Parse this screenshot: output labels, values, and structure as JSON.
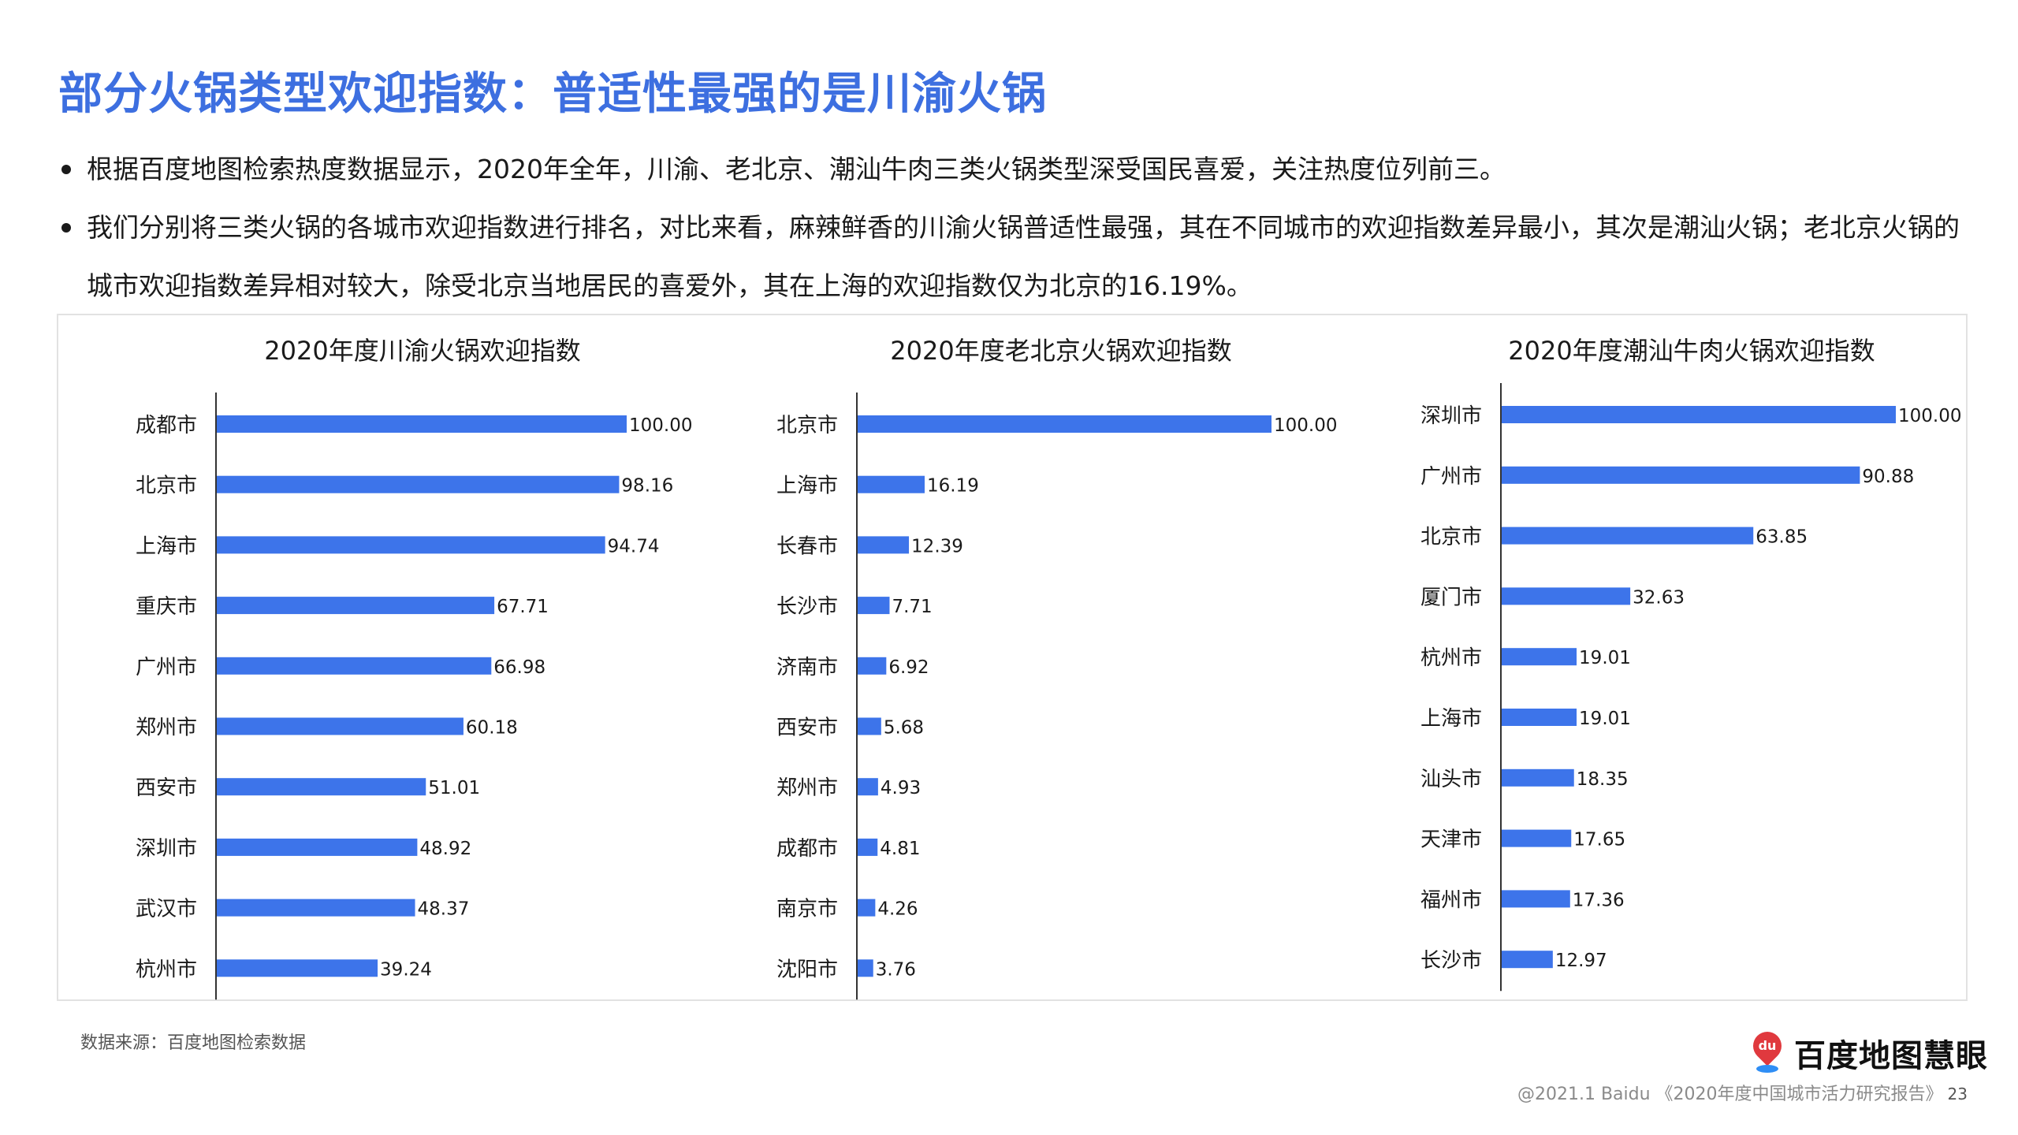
{
  "page": {
    "title": "部分火锅类型欢迎指数：普适性最强的是川渝火锅",
    "bullets": [
      "根据百度地图检索热度数据显示，2020年全年，川渝、老北京、潮汕牛肉三类火锅类型深受国民喜爱，关注热度位列前三。",
      "我们分别将三类火锅的各城市欢迎指数进行排名，对比来看，麻辣鲜香的川渝火锅普适性最强，其在不同城市的欢迎指数差异最小，其次是潮汕火锅；老北京火锅的城市欢迎指数差异相对较大，除受北京当地居民的喜爱外，其在上海的欢迎指数仅为北京的16.19%。"
    ],
    "source": "数据来源：百度地图检索数据",
    "logo_text": "百度地图慧眼",
    "logo_mark": "du",
    "footer": "@2021.1 Baidu 《2020年度中国城市活力研究报告》",
    "page_number": "23",
    "accent_color": "#3d6fe0",
    "bar_color": "#3d74ea"
  },
  "chart_data": [
    {
      "type": "bar",
      "orientation": "horizontal",
      "title": "2020年度川渝火锅欢迎指数",
      "categories": [
        "成都市",
        "北京市",
        "上海市",
        "重庆市",
        "广州市",
        "郑州市",
        "西安市",
        "深圳市",
        "武汉市",
        "杭州市"
      ],
      "values": [
        100.0,
        98.16,
        94.74,
        67.71,
        66.98,
        60.18,
        51.01,
        48.92,
        48.37,
        39.24
      ],
      "labels": [
        "100.00",
        "98.16",
        "94.74",
        "67.71",
        "66.98",
        "60.18",
        "51.01",
        "48.92",
        "48.37",
        "39.24"
      ],
      "xlim": [
        0,
        100
      ],
      "grid": false,
      "legend": "none"
    },
    {
      "type": "bar",
      "orientation": "horizontal",
      "title": "2020年度老北京火锅欢迎指数",
      "categories": [
        "北京市",
        "上海市",
        "长春市",
        "长沙市",
        "济南市",
        "西安市",
        "郑州市",
        "成都市",
        "南京市",
        "沈阳市"
      ],
      "values": [
        100.0,
        16.19,
        12.39,
        7.71,
        6.92,
        5.68,
        4.93,
        4.81,
        4.26,
        3.76
      ],
      "labels": [
        "100.00",
        "16.19",
        "12.39",
        "7.71",
        "6.92",
        "5.68",
        "4.93",
        "4.81",
        "4.26",
        "3.76"
      ],
      "xlim": [
        0,
        100
      ],
      "grid": false,
      "legend": "none"
    },
    {
      "type": "bar",
      "orientation": "horizontal",
      "title": "2020年度潮汕牛肉火锅欢迎指数",
      "categories": [
        "深圳市",
        "广州市",
        "北京市",
        "厦门市",
        "杭州市",
        "上海市",
        "汕头市",
        "天津市",
        "福州市",
        "长沙市"
      ],
      "values": [
        100.0,
        90.88,
        63.85,
        32.63,
        19.01,
        19.01,
        18.35,
        17.65,
        17.36,
        12.97
      ],
      "labels": [
        "100.00",
        "90.88",
        "63.85",
        "32.63",
        "19.01",
        "19.01",
        "18.35",
        "17.65",
        "17.36",
        "12.97"
      ],
      "xlim": [
        0,
        100
      ],
      "grid": false,
      "legend": "none"
    }
  ]
}
